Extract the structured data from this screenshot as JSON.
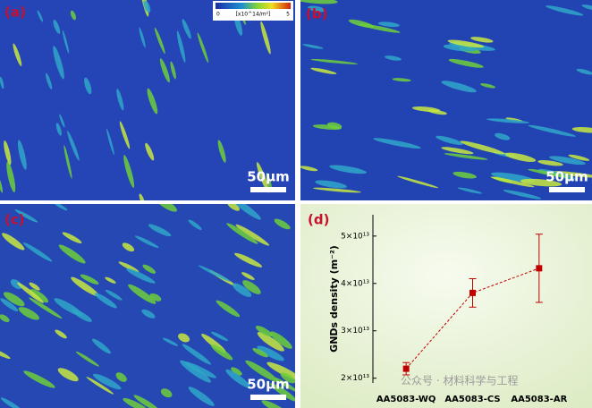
{
  "panels": [
    {
      "label": "(a)",
      "scale_bar": "50μm"
    },
    {
      "label": "(b)",
      "scale_bar": "50μm"
    },
    {
      "label": "(c)",
      "scale_bar": "50μm"
    },
    {
      "label": "(d)"
    }
  ],
  "colorbar": {
    "min": 0,
    "unit": "[x10^14/m²]",
    "max": 5
  },
  "watermark": "公众号 · 材料科学与工程",
  "chart_data": {
    "type": "line",
    "ylabel": "GNDs density (m⁻²)",
    "categories": [
      "AA5083-WQ",
      "AA5083-CS",
      "AA5083-AR"
    ],
    "values": [
      22000000000000.0,
      38000000000000.0,
      43200000000000.0
    ],
    "errors": [
      1300000000000.0,
      3000000000000.0,
      7200000000000.0
    ],
    "color": "#c00000",
    "ylim": [
      19000000000000.0,
      54500000000000.0
    ],
    "yticks": [
      {
        "value": 20000000000000.0,
        "label": "2×10¹³"
      },
      {
        "value": 30000000000000.0,
        "label": "3×10¹³"
      },
      {
        "value": 40000000000000.0,
        "label": "4×10¹³"
      },
      {
        "value": 50000000000000.0,
        "label": "5×10¹³"
      }
    ]
  }
}
